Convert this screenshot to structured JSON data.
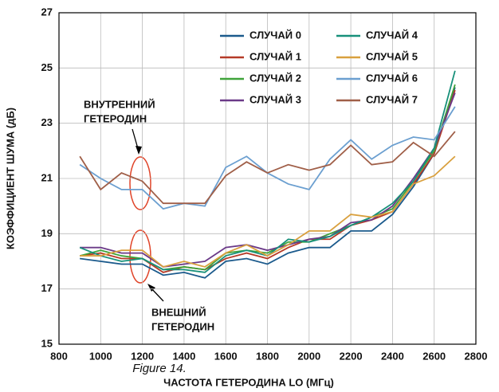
{
  "chart_data": {
    "type": "line",
    "caption": "Figure 14.",
    "xlabel": "ЧАСТОТА ГЕТЕРОДИНА LO (МГц)",
    "ylabel": "КОЭФФИЦИЕНТ ШУМА (дБ)",
    "xlim": [
      800,
      2800
    ],
    "xticks": [
      800,
      1000,
      1200,
      1400,
      1600,
      1800,
      2000,
      2200,
      2400,
      2600,
      2800
    ],
    "ylim": [
      15,
      27
    ],
    "yticks": [
      15,
      17,
      19,
      21,
      23,
      25,
      27
    ],
    "grid": true,
    "legend": "upper right",
    "annotations": [
      {
        "lines": [
          "ВНУТРЕННИЙ",
          "ГЕТЕРОДИН"
        ]
      },
      {
        "lines": [
          "ВНЕШНИЙ",
          "ГЕТЕРОДИН"
        ]
      }
    ],
    "x": [
      900,
      1000,
      1100,
      1200,
      1300,
      1400,
      1500,
      1600,
      1700,
      1800,
      1900,
      2000,
      2100,
      2200,
      2300,
      2400,
      2500,
      2600,
      2700
    ],
    "series": [
      {
        "name": "СЛУЧАЙ 0",
        "color": "#1b5a8c",
        "values": [
          18.1,
          18.0,
          17.9,
          17.9,
          17.5,
          17.6,
          17.4,
          18.0,
          18.1,
          17.9,
          18.3,
          18.5,
          18.5,
          19.1,
          19.1,
          19.7,
          20.7,
          21.9,
          24.3
        ]
      },
      {
        "name": "СЛУЧАЙ 1",
        "color": "#b53a27",
        "values": [
          18.2,
          18.3,
          18.1,
          18.1,
          17.6,
          17.8,
          17.7,
          18.1,
          18.3,
          18.1,
          18.5,
          18.8,
          18.8,
          19.3,
          19.5,
          19.8,
          20.8,
          21.9,
          24.2
        ]
      },
      {
        "name": "СЛУЧАЙ 2",
        "color": "#3fa33a",
        "values": [
          18.2,
          18.4,
          18.2,
          18.1,
          17.7,
          17.8,
          17.7,
          18.3,
          18.4,
          18.3,
          18.7,
          18.7,
          19.0,
          19.3,
          19.6,
          19.9,
          20.9,
          22.0,
          24.4
        ]
      },
      {
        "name": "СЛУЧАЙ 3",
        "color": "#6b3a88",
        "values": [
          18.5,
          18.5,
          18.3,
          18.3,
          17.8,
          17.9,
          18.0,
          18.5,
          18.6,
          18.4,
          18.6,
          18.8,
          18.9,
          19.4,
          19.5,
          20.0,
          21.0,
          22.1,
          24.1
        ]
      },
      {
        "name": "СЛУЧАЙ 4",
        "color": "#17907a",
        "values": [
          18.5,
          18.2,
          18.0,
          18.1,
          17.7,
          17.7,
          17.6,
          18.2,
          18.4,
          18.2,
          18.8,
          18.7,
          18.9,
          19.3,
          19.6,
          20.1,
          20.9,
          22.1,
          24.9
        ]
      },
      {
        "name": "СЛУЧАЙ 5",
        "color": "#d9a03e",
        "values": [
          18.2,
          18.2,
          18.4,
          18.4,
          17.8,
          18.0,
          17.8,
          18.3,
          18.6,
          18.2,
          18.6,
          19.1,
          19.1,
          19.7,
          19.6,
          19.8,
          20.8,
          21.1,
          21.8
        ]
      },
      {
        "name": "СЛУЧАЙ 6",
        "color": "#6b9fd0",
        "values": [
          21.5,
          21.0,
          20.6,
          20.6,
          19.9,
          20.1,
          20.0,
          21.4,
          21.8,
          21.2,
          20.8,
          20.6,
          21.7,
          22.4,
          21.7,
          22.2,
          22.5,
          22.4,
          23.6
        ]
      },
      {
        "name": "СЛУЧАЙ 7",
        "color": "#a05f48",
        "values": [
          21.8,
          20.6,
          21.2,
          20.9,
          20.1,
          20.1,
          20.1,
          21.1,
          21.6,
          21.2,
          21.5,
          21.3,
          21.5,
          22.2,
          21.5,
          21.6,
          22.3,
          21.8,
          22.7
        ]
      }
    ]
  }
}
